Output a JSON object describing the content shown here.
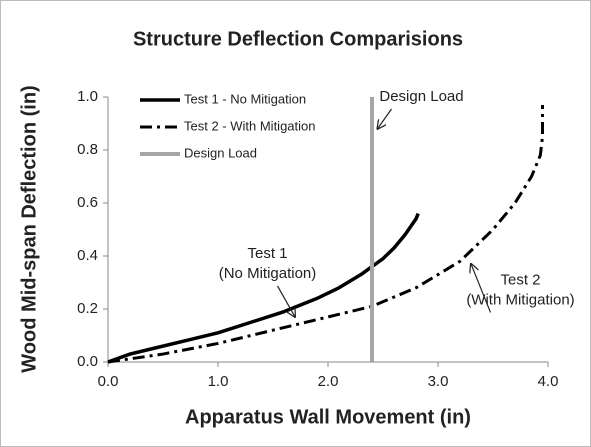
{
  "chart_data": {
    "type": "line",
    "title": "Structure Deflection Comparisions",
    "xlabel": "Apparatus Wall Movement (in)",
    "ylabel": "Wood Mid-span Deflection (in)",
    "xlim": [
      0,
      4
    ],
    "ylim": [
      0,
      1
    ],
    "xticks": [
      {
        "value": 0,
        "label": "0.0"
      },
      {
        "value": 1,
        "label": "1.0"
      },
      {
        "value": 2,
        "label": "2.0"
      },
      {
        "value": 3,
        "label": "3.0"
      },
      {
        "value": 4,
        "label": "4.0"
      }
    ],
    "yticks": [
      {
        "value": 0,
        "label": "0.0"
      },
      {
        "value": 0.2,
        "label": "0.2"
      },
      {
        "value": 0.4,
        "label": "0.4"
      },
      {
        "value": 0.6,
        "label": "0.6"
      },
      {
        "value": 0.8,
        "label": "0.8"
      },
      {
        "value": 1,
        "label": "1.0"
      }
    ],
    "legend": "upper left",
    "series": [
      {
        "name": "Test 1 - No Mitigation",
        "color": "#000000",
        "style": "solid",
        "x": [
          0,
          0.2,
          0.4,
          0.7,
          1.0,
          1.3,
          1.6,
          1.9,
          2.1,
          2.3,
          2.4,
          2.5,
          2.6,
          2.7,
          2.8,
          2.82
        ],
        "values": [
          0,
          0.03,
          0.05,
          0.08,
          0.11,
          0.15,
          0.19,
          0.24,
          0.28,
          0.33,
          0.36,
          0.39,
          0.43,
          0.48,
          0.54,
          0.56
        ]
      },
      {
        "name": "Test 2 - With Mitigation",
        "color": "#000000",
        "style": "dashdot",
        "x": [
          0,
          0.5,
          1.0,
          1.5,
          2.0,
          2.4,
          2.8,
          3.2,
          3.5,
          3.7,
          3.85,
          3.93,
          3.95,
          3.95
        ],
        "values": [
          0,
          0.03,
          0.07,
          0.12,
          0.17,
          0.21,
          0.28,
          0.38,
          0.5,
          0.6,
          0.7,
          0.78,
          0.85,
          0.97
        ]
      },
      {
        "name": "Design Load",
        "color": "#a6a6a6",
        "style": "thick",
        "x": [
          2.4,
          2.4
        ],
        "values": [
          0,
          1
        ]
      }
    ],
    "annotations": [
      {
        "lines": [
          "Design Load"
        ],
        "x": 2.85,
        "y": 1.0,
        "ax": 2.45,
        "ay": 0.88
      },
      {
        "lines": [
          "Test 1",
          "(No Mitigation)"
        ],
        "x": 1.45,
        "y": 0.37,
        "ax": 1.7,
        "ay": 0.17
      },
      {
        "lines": [
          "Test 2",
          "(With Mitigation)"
        ],
        "x": 3.75,
        "y": 0.27,
        "ax": 3.3,
        "ay": 0.37
      }
    ]
  }
}
